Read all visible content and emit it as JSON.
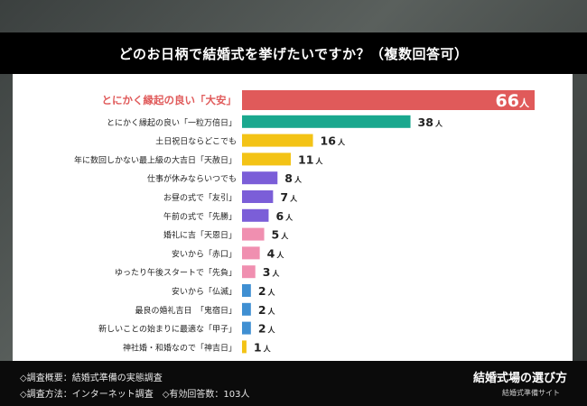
{
  "header": {
    "title": "どのお日柄で結婚式を挙げたいですか？（複数回答可）"
  },
  "chart_data": {
    "type": "bar",
    "orientation": "horizontal",
    "title": "どのお日柄で結婚式を挙げたいですか？（複数回答可）",
    "unit": "人",
    "categories": [
      "とにかく縁起の良い「大安」",
      "とにかく縁起の良い「一粒万倍日」",
      "土日祝日ならどこでも",
      "年に数回しかない最上級の大吉日「天赦日」",
      "仕事が休みならいつでも",
      "お昼の式で「友引」",
      "午前の式で「先勝」",
      "婚礼に吉「天恩日」",
      "安いから「赤口」",
      "ゆったり午後スタートで「先負」",
      "安いから「仏滅」",
      "最良の婚礼吉日　「鬼宿日」",
      "新しいことの始まりに最適な「甲子」",
      "神社婚・和婚なので「神吉日」"
    ],
    "values": [
      66,
      38,
      16,
      11,
      8,
      7,
      6,
      5,
      4,
      3,
      2,
      2,
      2,
      1
    ],
    "colors": [
      "#e05a5a",
      "#1aa88e",
      "#f3c316",
      "#f3c316",
      "#7b5ed8",
      "#7b5ed8",
      "#7b5ed8",
      "#f08fb0",
      "#f08fb0",
      "#f08fb0",
      "#3f8fd2",
      "#3f8fd2",
      "#3f8fd2",
      "#f3c316"
    ],
    "highlight_index": 0,
    "highlight_label_color": "#e05a5a",
    "xlim": [
      0,
      66
    ],
    "grid": false,
    "legend": "none"
  },
  "footer": {
    "note1": "◇調査概要：結婚式準備の実態調査",
    "note2": "◇調査方法：インターネット調査　◇有効回答数：103人",
    "brand": "結婚式場の選び方",
    "brand_sub": "結婚式準備サイト"
  }
}
